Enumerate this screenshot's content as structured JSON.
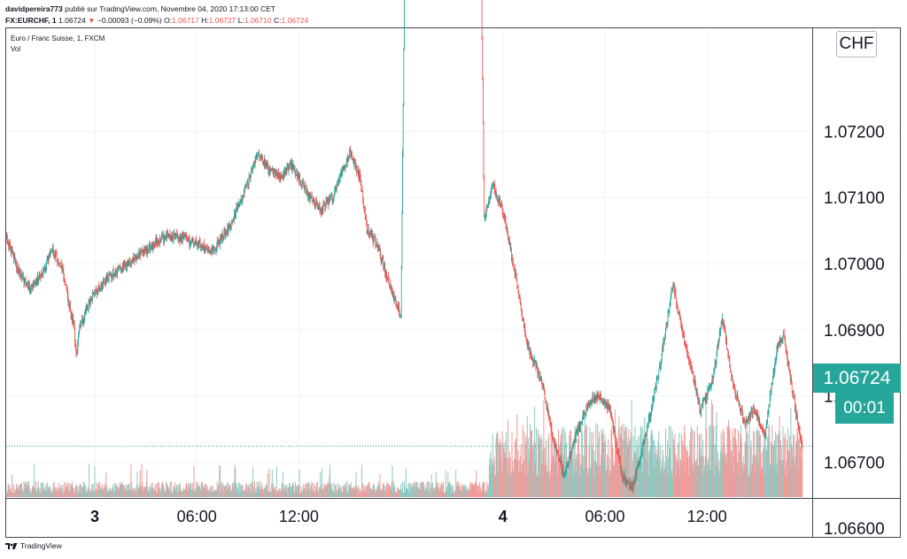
{
  "header": {
    "author": "davidpereira773",
    "published": "publié sur TradingView.com, Novembre 04, 2020 17:13:00 CET",
    "symbol": "FX:EURCHF, 1",
    "last": "1.06724",
    "change_arrow": "▼",
    "change": "−0.00093 (−0.09%)",
    "o_label": "O:",
    "o_value": "1.06717",
    "h_label": "H:",
    "h_value": "1.06727",
    "l_label": "L:",
    "l_value": "1.06710",
    "c_label": "C:",
    "c_value": "1.06724"
  },
  "legend": {
    "title": "Euro / Franc Suisse, 1, FXCM",
    "volume": "Vol"
  },
  "currency": "CHF",
  "price_label": "1.06724",
  "countdown": "00:01",
  "footer": {
    "brand": "TradingView"
  },
  "colors": {
    "up": "#26a69a",
    "down": "#ef5350",
    "volume_up": "#90c8c1",
    "volume_down": "#f19b99",
    "grid": "#f0f3fa",
    "axis_text": "#131722"
  },
  "icons": [
    "tradingview-logo-icon"
  ],
  "chart_data": {
    "type": "candlestick",
    "title": "Euro / Franc Suisse, 1, FXCM",
    "xlabel": "",
    "ylabel": "",
    "ylim": [
      1.0655,
      1.0725
    ],
    "grid": true,
    "y_ticks": [
      "1.06600",
      "1.06700",
      "1.06800",
      "1.06900",
      "1.07000",
      "1.07100",
      "1.07200"
    ],
    "y_tick_values": [
      1.066,
      1.067,
      1.068,
      1.069,
      1.07,
      1.071,
      1.072
    ],
    "x_ticks": [
      "3",
      "06:00",
      "12:00",
      "4",
      "06:00",
      "12:00"
    ],
    "x_tick_positions_hours": [
      0,
      6,
      12,
      24,
      30,
      36
    ],
    "x_tick_bold": [
      true,
      false,
      false,
      true,
      false,
      false
    ],
    "x_range_hours": [
      -5.2,
      42.5
    ],
    "current_price": 1.06724,
    "price_path": {
      "hours": [
        -5.2,
        -4.5,
        -3.8,
        -3.0,
        -2.5,
        -1.9,
        -1.2,
        -1.1,
        -0.9,
        -0.2,
        0.8,
        2.0,
        3.0,
        4.0,
        5.0,
        6.0,
        7.0,
        8.0,
        9.0,
        9.6,
        10.3,
        11.0,
        11.5,
        12.0,
        12.6,
        13.3,
        14.0,
        15.0,
        15.6,
        16.0,
        16.6,
        17.3,
        18.0,
        18.8,
        19.3,
        20.0,
        20.6,
        21.0,
        22.0,
        22.9,
        23.4,
        24.0,
        24.9,
        25.4,
        26.3,
        27.0,
        27.6,
        28.3,
        29.0,
        29.6,
        30.3,
        31.0,
        31.6,
        32.4,
        33.2,
        34.0,
        34.6,
        35.2,
        35.6,
        36.3,
        36.9,
        37.5,
        38.2,
        38.8,
        39.4,
        40.1,
        40.5,
        41.0,
        41.6
      ],
      "close": [
        1.0704,
        1.0699,
        1.0696,
        1.0699,
        1.0702,
        1.0699,
        1.069,
        1.0686,
        1.069,
        1.0695,
        1.0698,
        1.07,
        1.0702,
        1.0704,
        1.0704,
        1.0703,
        1.0702,
        1.0706,
        1.0712,
        1.0717,
        1.0714,
        1.0713,
        1.0715,
        1.0713,
        1.071,
        1.0708,
        1.071,
        1.0717,
        1.0713,
        1.0705,
        1.0703,
        1.0697,
        1.0692,
        1.0886,
        1.0885,
        1.0884,
        1.0883,
        1.089,
        1.0894,
        1.0707,
        1.0712,
        1.0708,
        1.0696,
        1.0688,
        1.0682,
        1.0673,
        1.0668,
        1.0674,
        1.0679,
        1.068,
        1.0678,
        1.0668,
        1.0666,
        1.0674,
        1.0684,
        1.0697,
        1.0689,
        1.0683,
        1.0678,
        1.0682,
        1.0692,
        1.0682,
        1.0676,
        1.0678,
        1.0674,
        1.0687,
        1.0689,
        1.0681,
        1.0672
      ]
    },
    "volume": {
      "level_day1": "low",
      "level_day2": "high",
      "change_hours": 23.2
    },
    "series": [
      {
        "name": "Vol",
        "type": "volume"
      }
    ]
  }
}
